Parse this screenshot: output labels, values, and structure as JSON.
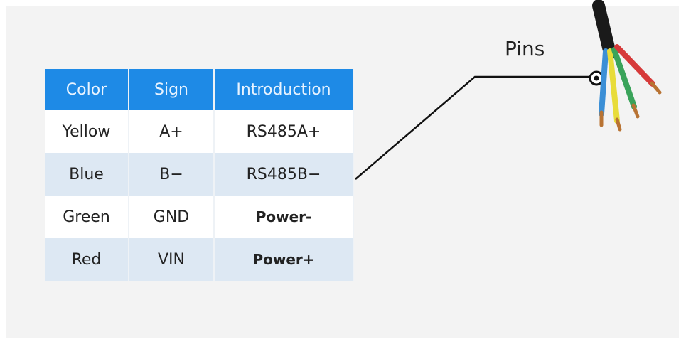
{
  "pins_label": "Pins",
  "table": {
    "header": [
      "Color",
      "Sign",
      "Introduction"
    ],
    "rows": [
      [
        "Yellow",
        "A+",
        "RS485A+"
      ],
      [
        "Blue",
        "B−",
        "RS485B−"
      ],
      [
        "Green",
        "GND",
        "Power-"
      ],
      [
        "Red",
        "VIN",
        "Power+"
      ]
    ]
  }
}
